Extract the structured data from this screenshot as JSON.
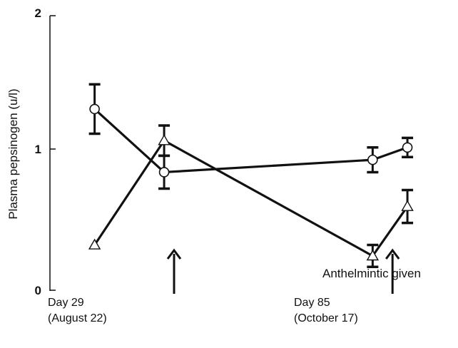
{
  "chart_data": {
    "type": "line",
    "ylabel": "Plasma pepsinogen (u/l)",
    "ylim": [
      0,
      2
    ],
    "yticks": [
      "0",
      "1",
      "2"
    ],
    "x_ticks": [
      {
        "line1": "Day 29",
        "line2": "(August 22)",
        "x": 29
      },
      {
        "line1": "Day 85",
        "line2": "(October 17)",
        "x": 85
      }
    ],
    "xlim": [
      20,
      94
    ],
    "series": [
      {
        "marker": "circle",
        "points": [
          {
            "x": 29,
            "y": 1.32,
            "err": 0.18
          },
          {
            "x": 43,
            "y": 0.86,
            "err": 0.12
          },
          {
            "x": 85,
            "y": 0.95,
            "err": 0.09
          },
          {
            "x": 92,
            "y": 1.04,
            "err": 0.07
          }
        ]
      },
      {
        "marker": "triangle",
        "points": [
          {
            "x": 29,
            "y": 0.33,
            "err": 0
          },
          {
            "x": 43,
            "y": 1.09,
            "err": 0.11
          },
          {
            "x": 85,
            "y": 0.25,
            "err": 0.08
          },
          {
            "x": 92,
            "y": 0.61,
            "err": 0.12
          }
        ]
      }
    ],
    "arrows_at_x": [
      45,
      89
    ],
    "annotation": "Anthelmintic given",
    "grid": false,
    "legend": "none"
  }
}
